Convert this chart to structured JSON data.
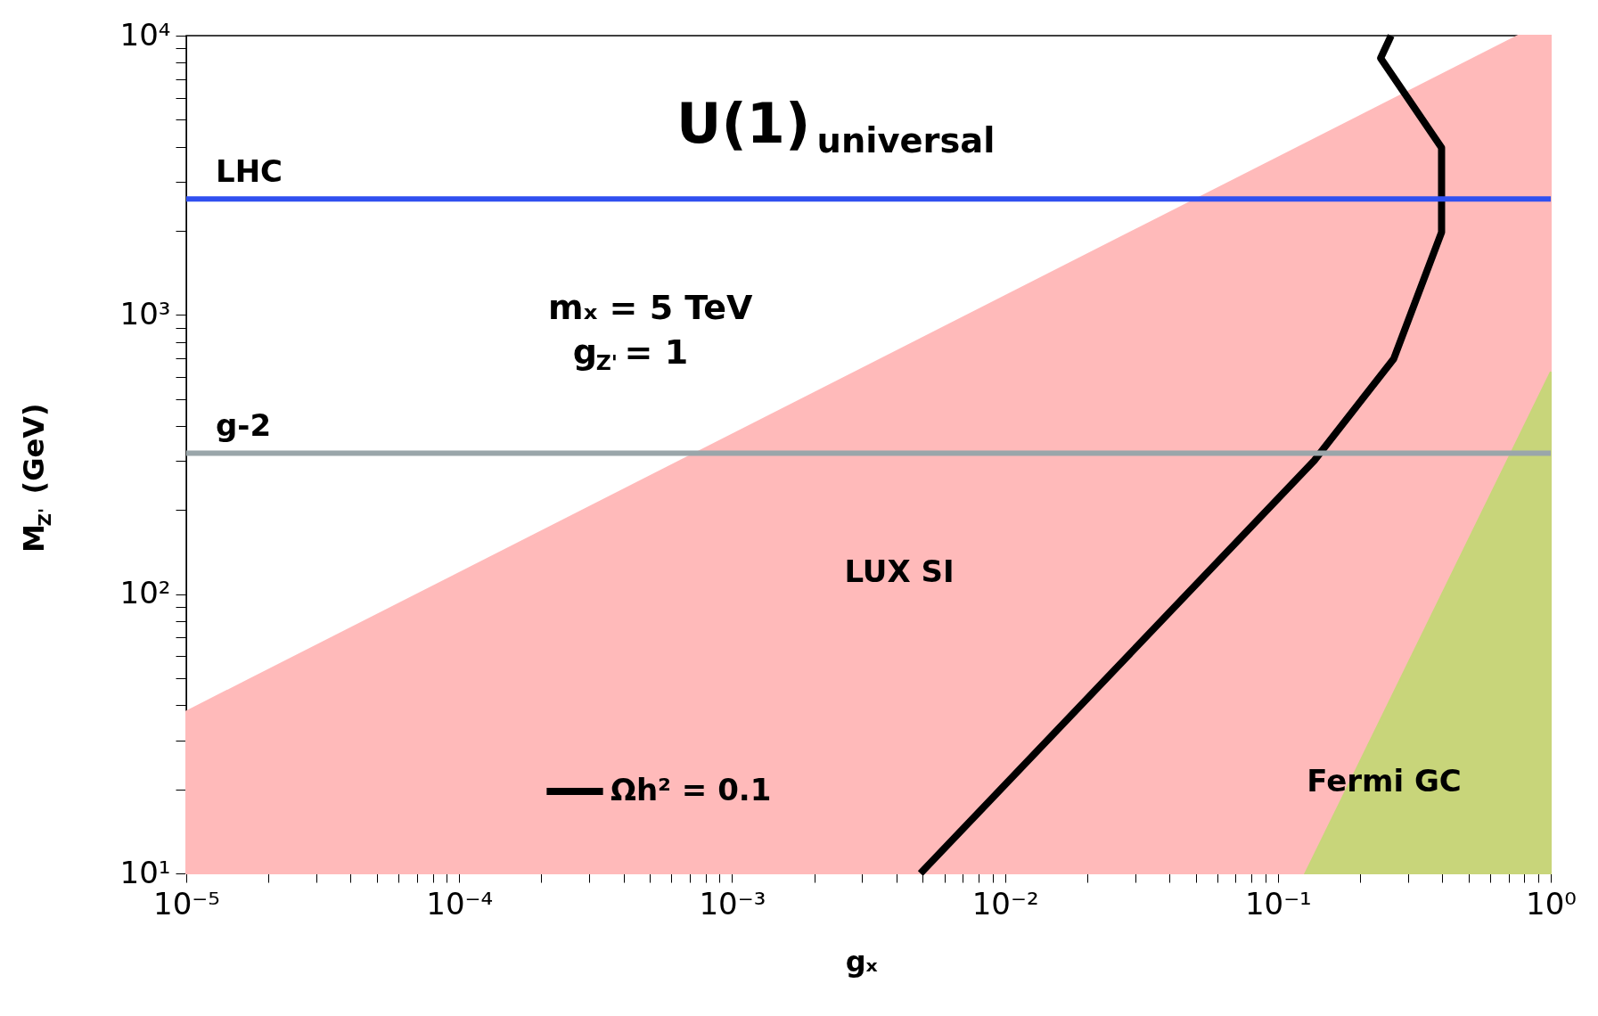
{
  "chart_data": {
    "type": "line",
    "title": "U(1)$_{universal}$",
    "xlabel": "gₓ",
    "ylabel": "M$_{Z'}$ (GeV)",
    "annotations": [
      "mₓ = 5 TeV",
      "g$_{Z'}$ = 1"
    ],
    "series": [
      {
        "name": "LUX SI",
        "type": "area",
        "color": "#ffbaba",
        "x": [
          1e-05,
          0.76,
          1
        ],
        "values": [
          38,
          10000,
          10000
        ]
      },
      {
        "name": "Fermi GC",
        "type": "area",
        "color": "#c8d57a",
        "x": [
          0.126,
          1
        ],
        "values": [
          10,
          625
        ]
      },
      {
        "name": "Ωh² = 0.1",
        "type": "line",
        "color": "#000000",
        "x": [
          0.0049,
          0.136,
          0.266,
          0.398,
          0.398,
          0.238,
          0.26
        ],
        "values": [
          10,
          301,
          697,
          1977,
          3966,
          8310,
          10000
        ]
      }
    ],
    "ref_lines": [
      {
        "axis": "y",
        "value": 2600,
        "label": "LHC",
        "color": "#3050f0"
      },
      {
        "axis": "y",
        "value": 320,
        "label": "g-2",
        "color": "#9aa6aa"
      }
    ],
    "log": "xy",
    "legend": "bottom left",
    "grid": false,
    "xlim": [
      1e-05,
      1
    ],
    "ylim": [
      10,
      10000
    ],
    "xticks": [
      {
        "value": 1e-05,
        "label": "10⁻⁵"
      },
      {
        "value": 2e-05,
        "label": null
      },
      {
        "value": 3e-05,
        "label": null
      },
      {
        "value": 4e-05,
        "label": null
      },
      {
        "value": 5e-05,
        "label": null
      },
      {
        "value": 6e-05,
        "label": null
      },
      {
        "value": 7e-05,
        "label": null
      },
      {
        "value": 8e-05,
        "label": null
      },
      {
        "value": 9e-05,
        "label": null
      },
      {
        "value": 0.0001,
        "label": "10⁻⁴"
      },
      {
        "value": 0.0002,
        "label": null
      },
      {
        "value": 0.0003,
        "label": null
      },
      {
        "value": 0.0004,
        "label": null
      },
      {
        "value": 0.0005,
        "label": null
      },
      {
        "value": 0.0006,
        "label": null
      },
      {
        "value": 0.0007,
        "label": null
      },
      {
        "value": 0.0008,
        "label": null
      },
      {
        "value": 0.0009,
        "label": null
      },
      {
        "value": 0.001,
        "label": "10⁻³"
      },
      {
        "value": 0.002,
        "label": null
      },
      {
        "value": 0.003,
        "label": null
      },
      {
        "value": 0.004,
        "label": null
      },
      {
        "value": 0.005,
        "label": null
      },
      {
        "value": 0.006,
        "label": null
      },
      {
        "value": 0.007,
        "label": null
      },
      {
        "value": 0.008,
        "label": null
      },
      {
        "value": 0.009,
        "label": null
      },
      {
        "value": 0.01,
        "label": "10⁻²"
      },
      {
        "value": 0.02,
        "label": null
      },
      {
        "value": 0.03,
        "label": null
      },
      {
        "value": 0.04,
        "label": null
      },
      {
        "value": 0.05,
        "label": null
      },
      {
        "value": 0.06,
        "label": null
      },
      {
        "value": 0.07,
        "label": null
      },
      {
        "value": 0.08,
        "label": null
      },
      {
        "value": 0.09,
        "label": null
      },
      {
        "value": 0.1,
        "label": "10⁻¹"
      },
      {
        "value": 0.2,
        "label": null
      },
      {
        "value": 0.3,
        "label": null
      },
      {
        "value": 0.4,
        "label": null
      },
      {
        "value": 0.5,
        "label": null
      },
      {
        "value": 0.6,
        "label": null
      },
      {
        "value": 0.7,
        "label": null
      },
      {
        "value": 0.8,
        "label": null
      },
      {
        "value": 0.9,
        "label": null
      },
      {
        "value": 1,
        "label": "10⁰"
      }
    ],
    "yticks": [
      {
        "value": 10,
        "label": "10¹"
      },
      {
        "value": 20,
        "label": null
      },
      {
        "value": 30,
        "label": null
      },
      {
        "value": 40,
        "label": null
      },
      {
        "value": 50,
        "label": null
      },
      {
        "value": 60,
        "label": null
      },
      {
        "value": 70,
        "label": null
      },
      {
        "value": 80,
        "label": null
      },
      {
        "value": 90,
        "label": null
      },
      {
        "value": 100,
        "label": "10²"
      },
      {
        "value": 200,
        "label": null
      },
      {
        "value": 300,
        "label": null
      },
      {
        "value": 400,
        "label": null
      },
      {
        "value": 500,
        "label": null
      },
      {
        "value": 600,
        "label": null
      },
      {
        "value": 700,
        "label": null
      },
      {
        "value": 800,
        "label": null
      },
      {
        "value": 900,
        "label": null
      },
      {
        "value": 1000,
        "label": "10³"
      },
      {
        "value": 2000,
        "label": null
      },
      {
        "value": 3000,
        "label": null
      },
      {
        "value": 4000,
        "label": null
      },
      {
        "value": 5000,
        "label": null
      },
      {
        "value": 6000,
        "label": null
      },
      {
        "value": 7000,
        "label": null
      },
      {
        "value": 8000,
        "label": null
      },
      {
        "value": 9000,
        "label": null
      },
      {
        "value": 10000,
        "label": "10⁴"
      }
    ]
  }
}
